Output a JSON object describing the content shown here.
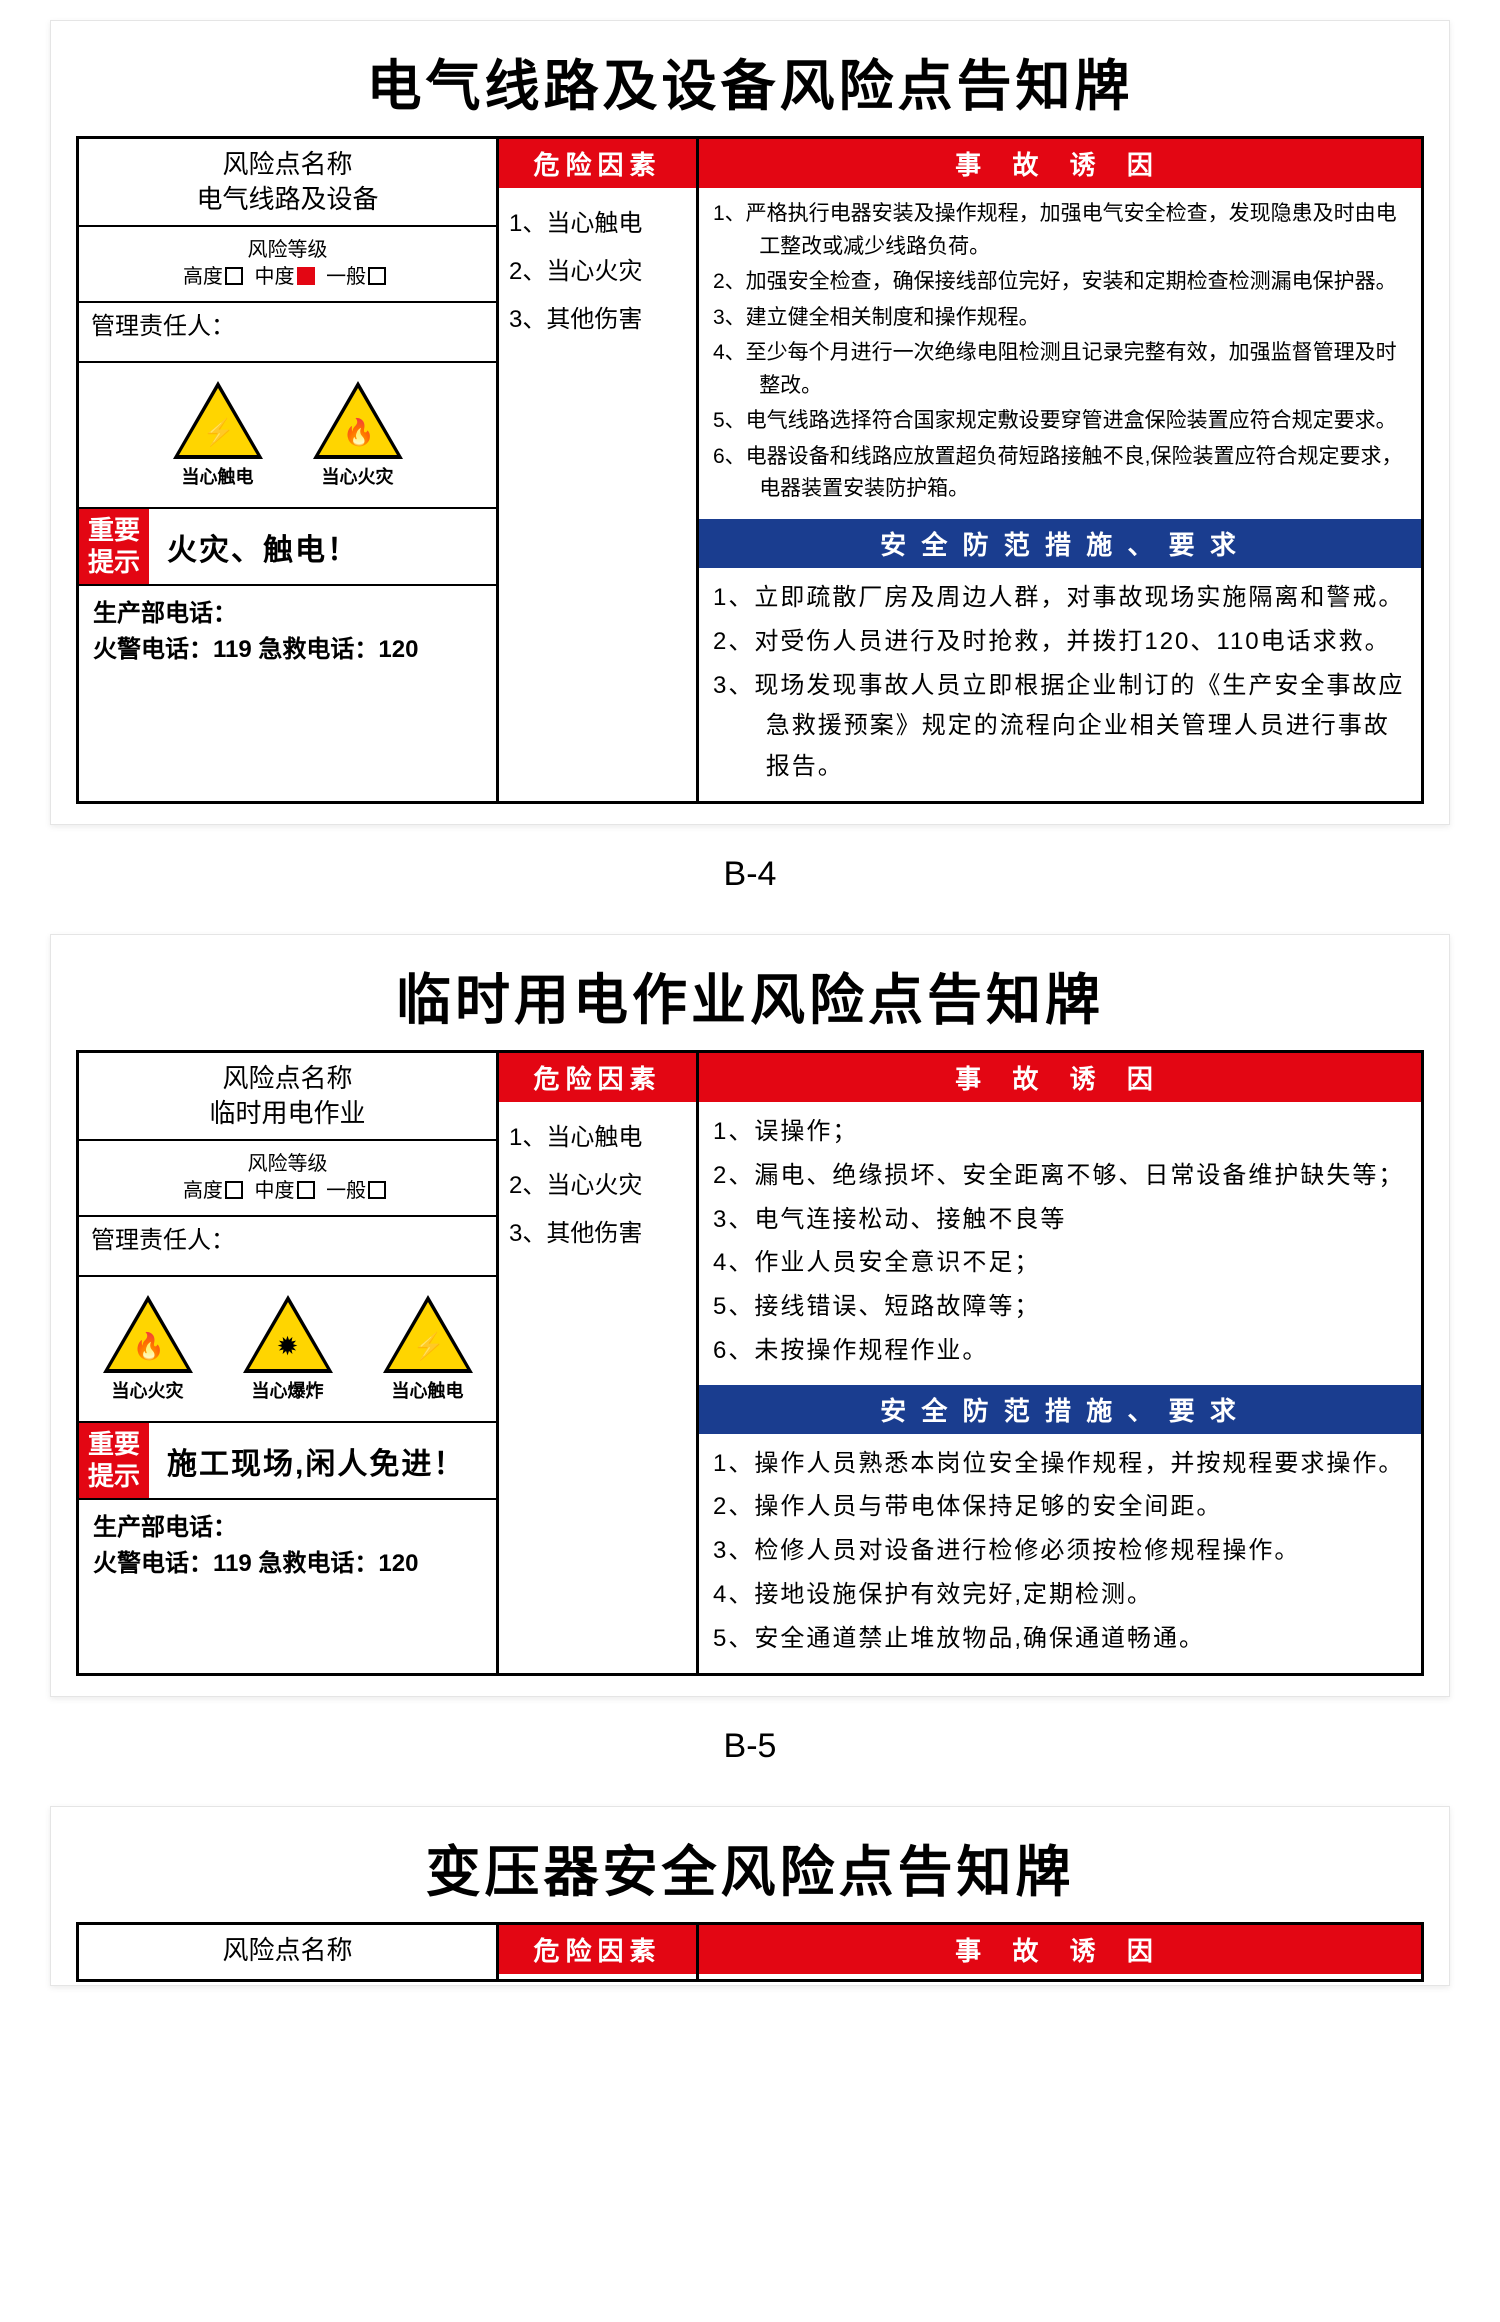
{
  "colors": {
    "red": "#e30613",
    "blue": "#1a3d8f",
    "yellow": "#ffd500",
    "black": "#000000",
    "white": "#ffffff"
  },
  "card1": {
    "caption": "B-4",
    "title": "电气线路及设备风险点告知牌",
    "risk_name_label": "风险点名称",
    "risk_name_value": "电气线路及设备",
    "risk_level_label": "风险等级",
    "level_high": "高度",
    "level_mid": "中度",
    "level_low": "一般",
    "level_checked": "mid",
    "manager_label": "管理责任人：",
    "warn_icons": [
      {
        "glyph": "⚡",
        "label": "当心触电"
      },
      {
        "glyph": "🔥",
        "label": "当心火灾"
      }
    ],
    "alert_tag": "重要提示",
    "alert_text": "火灾、触电！",
    "phone_line1": "生产部电话：",
    "phone_line2": "火警电话：119  急救电话：120",
    "hazard_head": "危险因素",
    "hazard_items": [
      "1、当心触电",
      "2、当心火灾",
      "3、其他伤害"
    ],
    "cause_head": "事 故 诱 因",
    "cause_items": [
      "1、严格执行电器安装及操作规程，加强电气安全检查，发现隐患及时由电工整改或减少线路负荷。",
      "2、加强安全检查，确保接线部位完好，安装和定期检查检测漏电保护器。",
      "3、建立健全相关制度和操作规程。",
      "4、至少每个月进行一次绝缘电阻检测且记录完整有效，加强监督管理及时整改。",
      "5、电气线路选择符合国家规定敷设要穿管进盒保险装置应符合规定要求。",
      "6、电器设备和线路应放置超负荷短路接触不良,保险装置应符合规定要求，电器装置安装防护箱。"
    ],
    "measure_head": "安 全 防 范 措 施 、 要 求",
    "measure_items": [
      "1、立即疏散厂房及周边人群，对事故现场实施隔离和警戒。",
      "2、对受伤人员进行及时抢救，并拨打120、110电话求救。",
      "3、现场发现事故人员立即根据企业制订的《生产安全事故应急救援预案》规定的流程向企业相关管理人员进行事故报告。"
    ]
  },
  "card2": {
    "caption": "B-5",
    "title": "临时用电作业风险点告知牌",
    "risk_name_label": "风险点名称",
    "risk_name_value": "临时用电作业",
    "risk_level_label": "风险等级",
    "level_high": "高度",
    "level_mid": "中度",
    "level_low": "一般",
    "level_checked": "none",
    "manager_label": "管理责任人：",
    "warn_icons": [
      {
        "glyph": "🔥",
        "label": "当心火灾"
      },
      {
        "glyph": "✹",
        "label": "当心爆炸"
      },
      {
        "glyph": "⚡",
        "label": "当心触电"
      }
    ],
    "alert_tag": "重要提示",
    "alert_text": "施工现场,闲人免进！",
    "phone_line1": "生产部电话：",
    "phone_line2": "火警电话：119  急救电话：120",
    "hazard_head": "危险因素",
    "hazard_items": [
      "1、当心触电",
      "2、当心火灾",
      "3、其他伤害"
    ],
    "cause_head": "事 故 诱 因",
    "cause_items": [
      "1、误操作；",
      "2、漏电、绝缘损坏、安全距离不够、日常设备维护缺失等；",
      "3、电气连接松动、接触不良等",
      "4、作业人员安全意识不足；",
      "5、接线错误、短路故障等；",
      "6、未按操作规程作业。"
    ],
    "measure_head": "安 全 防 范 措 施 、 要 求",
    "measure_items": [
      "1、操作人员熟悉本岗位安全操作规程，并按规程要求操作。",
      "2、操作人员与带电体保持足够的安全间距。",
      "3、检修人员对设备进行检修必须按检修规程操作。",
      "4、接地设施保护有效完好,定期检测。",
      "5、安全通道禁止堆放物品,确保通道畅通。"
    ]
  },
  "card3": {
    "title": "变压器安全风险点告知牌",
    "risk_name_label": "风险点名称",
    "hazard_head": "危险因素",
    "cause_head": "事 故 诱 因"
  }
}
